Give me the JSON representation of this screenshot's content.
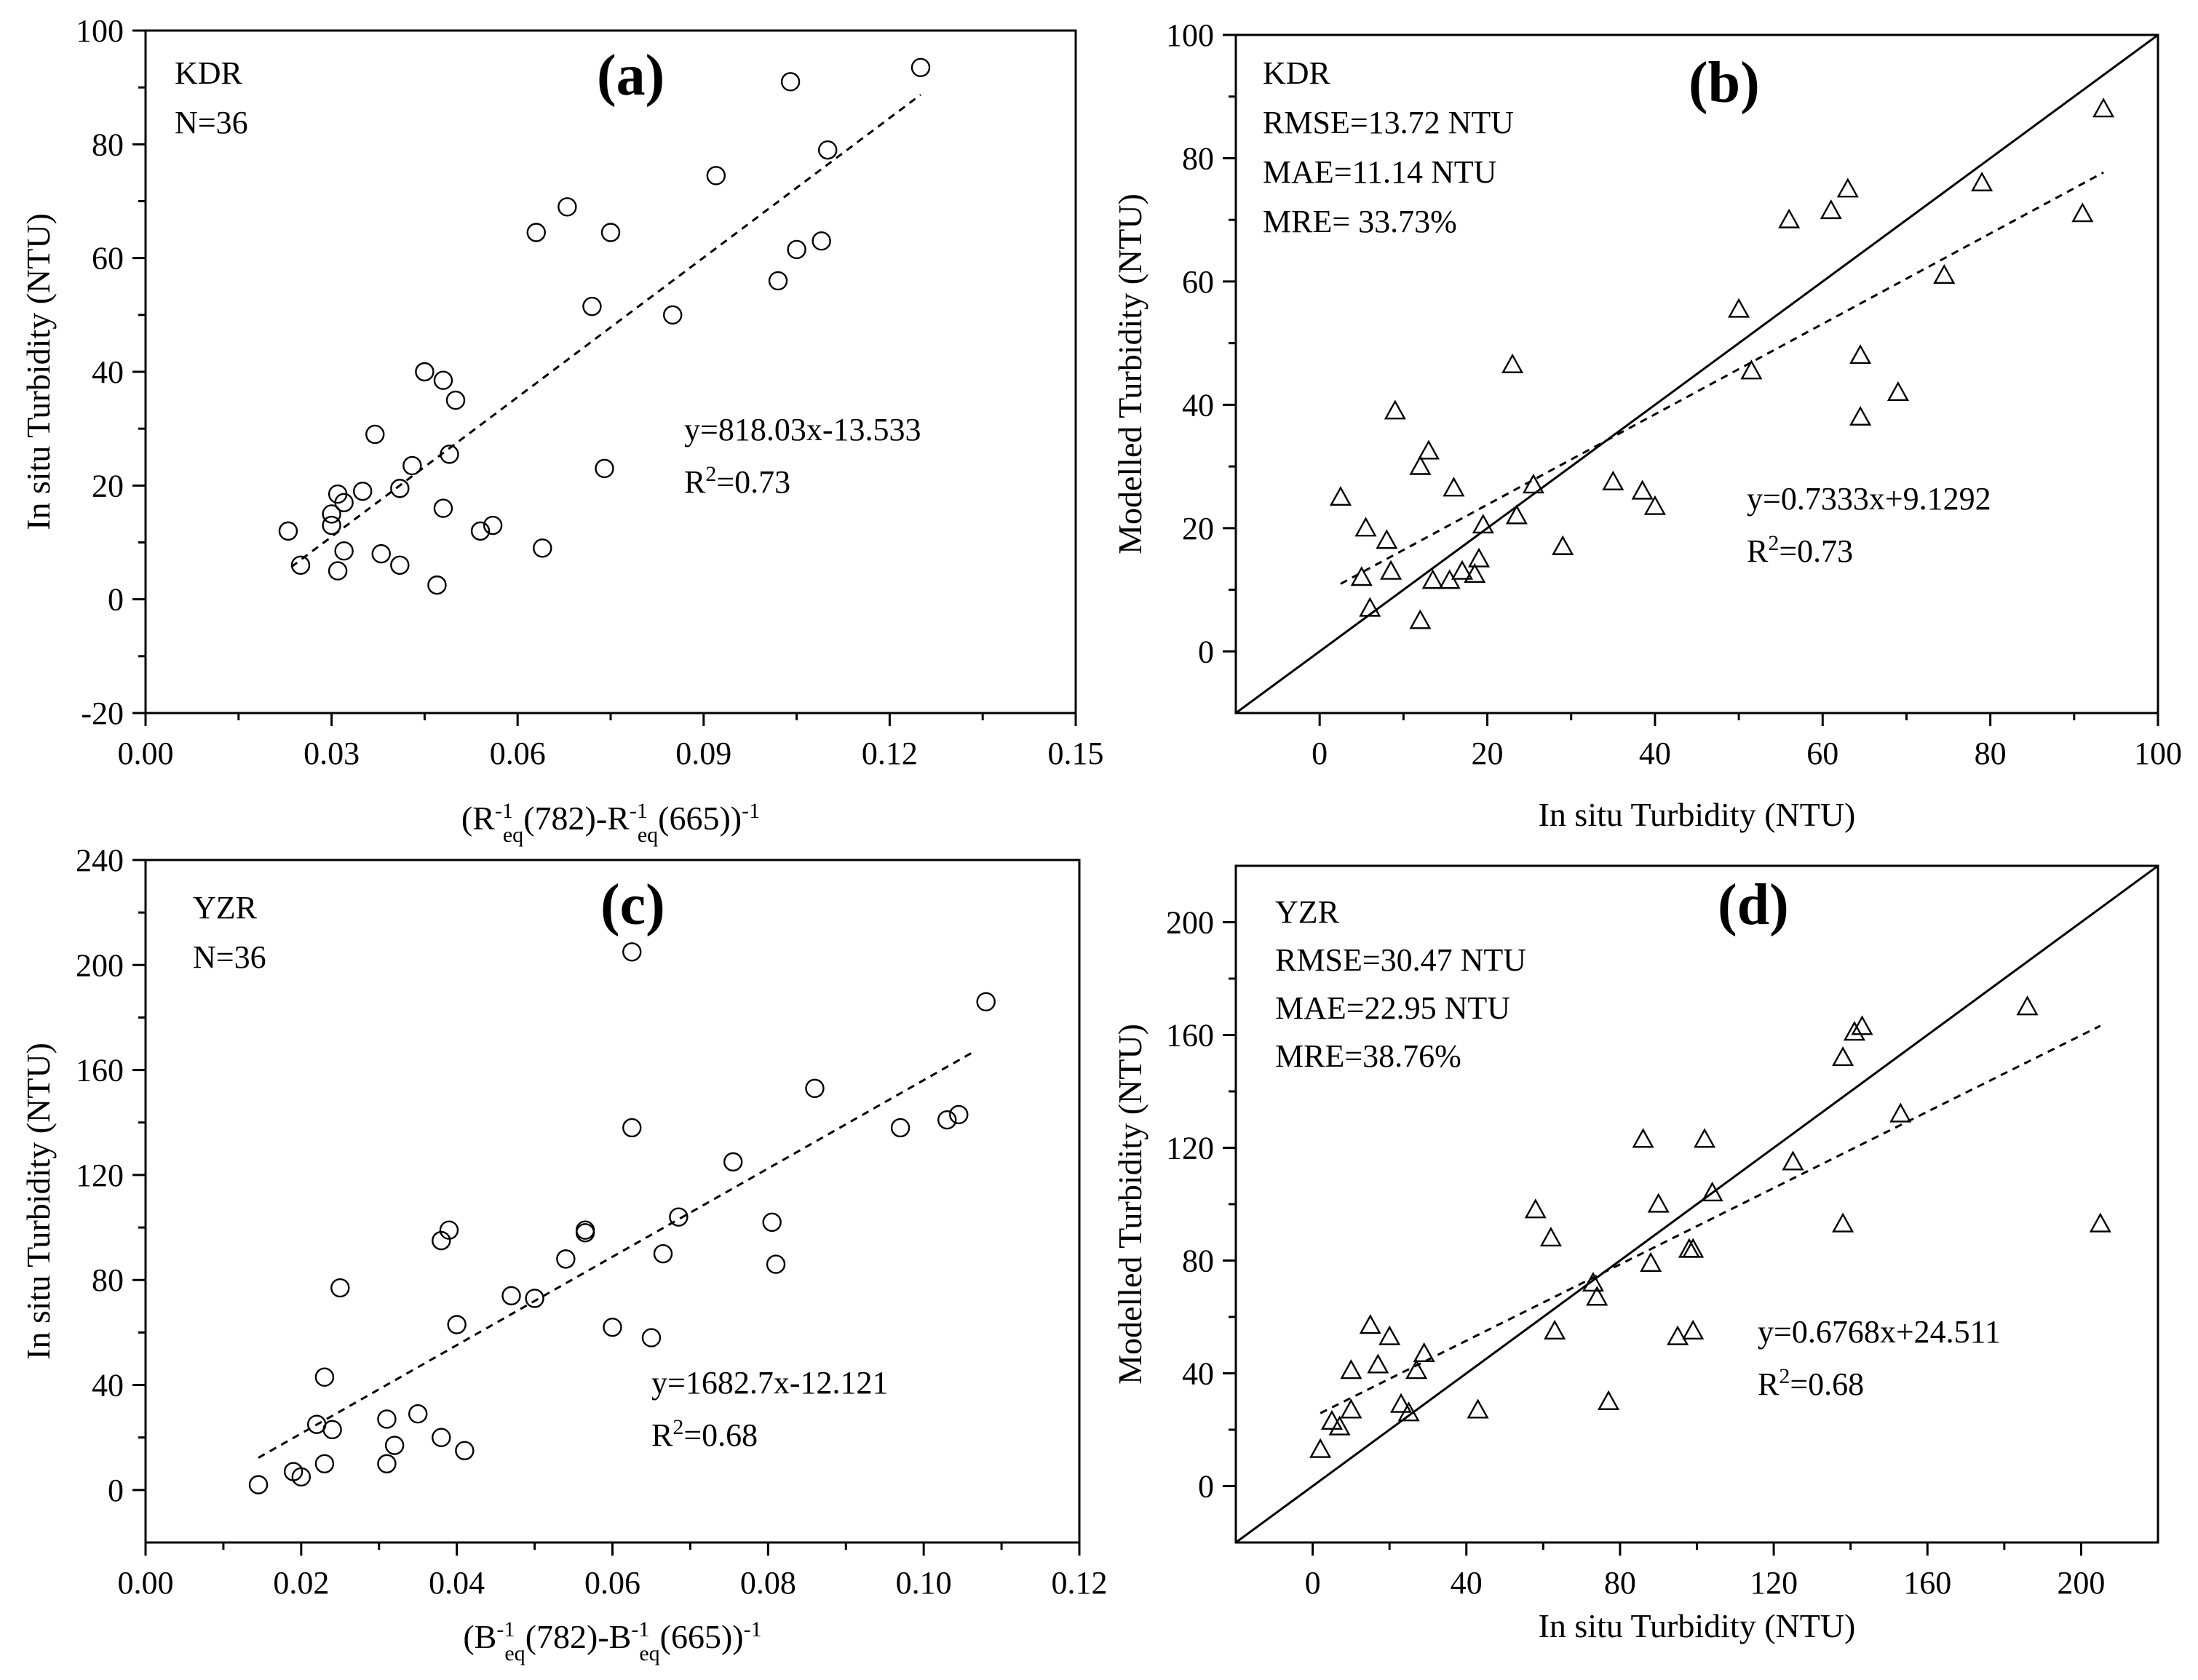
{
  "chart_data": [
    {
      "id": "a",
      "type": "scatter",
      "panel_label": "(a)",
      "xlabel_html": "(R<tspan baseline-shift='super' font-size='30'>-1</tspan><tspan baseline-shift='sub' font-size='30' dx='-14'>eq</tspan>(782)-R<tspan baseline-shift='super' font-size='30'>-1</tspan><tspan baseline-shift='sub' font-size='30' dx='-14'>eq</tspan>(665))<tspan baseline-shift='super' font-size='30'>-1</tspan>",
      "xlabel": "(R-1eq(782)-R-1eq(665))-1",
      "ylabel": "In situ Turbidity (NTU)",
      "xlim": [
        0,
        0.15
      ],
      "ylim": [
        -20,
        100
      ],
      "xticks": [
        0,
        0.03,
        0.06,
        0.09,
        0.12,
        0.15
      ],
      "xtick_labels": [
        "0.00",
        "0.03",
        "0.06",
        "0.09",
        "0.12",
        "0.15"
      ],
      "yticks": [
        -20,
        0,
        20,
        40,
        60,
        80,
        100
      ],
      "ytick_labels": [
        "-20",
        "0",
        "20",
        "40",
        "60",
        "80",
        "100"
      ],
      "annotations": [
        "KDR",
        "N=36"
      ],
      "equation": "y=818.03x-13.533",
      "r2_label": "R",
      "r2_sup": "2",
      "r2_value": "=0.73",
      "marker": "circle",
      "fit_line": {
        "x0": 0.0235,
        "x1": 0.125,
        "slope": 818.03,
        "intercept": -13.533
      },
      "one_to_one": false,
      "points": [
        [
          0.023,
          12
        ],
        [
          0.025,
          6
        ],
        [
          0.03,
          15
        ],
        [
          0.03,
          13
        ],
        [
          0.031,
          18.5
        ],
        [
          0.031,
          5
        ],
        [
          0.032,
          8.5
        ],
        [
          0.032,
          17
        ],
        [
          0.035,
          19
        ],
        [
          0.037,
          29
        ],
        [
          0.038,
          8
        ],
        [
          0.041,
          6
        ],
        [
          0.041,
          19.5
        ],
        [
          0.043,
          23.5
        ],
        [
          0.045,
          40
        ],
        [
          0.047,
          2.5
        ],
        [
          0.048,
          38.5
        ],
        [
          0.048,
          16
        ],
        [
          0.049,
          25.5
        ],
        [
          0.05,
          35
        ],
        [
          0.054,
          12
        ],
        [
          0.056,
          13
        ],
        [
          0.063,
          64.5
        ],
        [
          0.064,
          9
        ],
        [
          0.068,
          69
        ],
        [
          0.072,
          51.5
        ],
        [
          0.074,
          23
        ],
        [
          0.075,
          64.5
        ],
        [
          0.085,
          50
        ],
        [
          0.092,
          74.5
        ],
        [
          0.102,
          56
        ],
        [
          0.104,
          91
        ],
        [
          0.105,
          61.5
        ],
        [
          0.109,
          63
        ],
        [
          0.11,
          79
        ],
        [
          0.125,
          93.5
        ]
      ]
    },
    {
      "id": "b",
      "type": "scatter",
      "panel_label": "(b)",
      "xlabel": "In situ Turbidity (NTU)",
      "ylabel": "Modelled Turbidity (NTU)",
      "xlim": [
        -10,
        100
      ],
      "ylim": [
        -10,
        100
      ],
      "xticks": [
        0,
        20,
        40,
        60,
        80,
        100
      ],
      "xtick_labels": [
        "0",
        "20",
        "40",
        "60",
        "80",
        "100"
      ],
      "yticks": [
        0,
        20,
        40,
        60,
        80,
        100
      ],
      "ytick_labels": [
        "0",
        "20",
        "40",
        "60",
        "80",
        "100"
      ],
      "annotations": [
        "KDR",
        "RMSE=13.72 NTU",
        "MAE=11.14 NTU",
        "MRE= 33.73%"
      ],
      "equation": "y=0.7333x+9.1292",
      "r2_label": "R",
      "r2_sup": "2",
      "r2_value": "=0.73",
      "marker": "triangle",
      "fit_line": {
        "x0": 2.5,
        "x1": 93.5,
        "slope": 0.7333,
        "intercept": 9.1292
      },
      "one_to_one": true,
      "points": [
        [
          2.5,
          25
        ],
        [
          5,
          12
        ],
        [
          5.5,
          20
        ],
        [
          6,
          7
        ],
        [
          8,
          18
        ],
        [
          8.5,
          13
        ],
        [
          9,
          39
        ],
        [
          12,
          30
        ],
        [
          12,
          5
        ],
        [
          13,
          32.5
        ],
        [
          13.5,
          11.5
        ],
        [
          15.5,
          11.5
        ],
        [
          16,
          26.5
        ],
        [
          17,
          13
        ],
        [
          18.5,
          12.5
        ],
        [
          19,
          15
        ],
        [
          19.5,
          20.5
        ],
        [
          23,
          46.5
        ],
        [
          23.5,
          22
        ],
        [
          25.5,
          27
        ],
        [
          29,
          17
        ],
        [
          35,
          27.5
        ],
        [
          38.5,
          26
        ],
        [
          40,
          23.5
        ],
        [
          50,
          55.5
        ],
        [
          51.5,
          45.5
        ],
        [
          56,
          70
        ],
        [
          61,
          71.5
        ],
        [
          63,
          75
        ],
        [
          64.5,
          48
        ],
        [
          64.5,
          38
        ],
        [
          69,
          42
        ],
        [
          74.5,
          61
        ],
        [
          79,
          76
        ],
        [
          91,
          71
        ],
        [
          93.5,
          88
        ]
      ]
    },
    {
      "id": "c",
      "type": "scatter",
      "panel_label": "(c)",
      "xlabel_html": "(B<tspan baseline-shift='super' font-size='30'>-1</tspan><tspan baseline-shift='sub' font-size='30' dx='-14'>eq</tspan>(782)-B<tspan baseline-shift='super' font-size='30'>-1</tspan><tspan baseline-shift='sub' font-size='30' dx='-14'>eq</tspan>(665))<tspan baseline-shift='super' font-size='30'>-1</tspan>",
      "xlabel": "(B-1eq(782)-B-1eq(665))-1",
      "ylabel": "In situ Turbidity (NTU)",
      "xlim": [
        0,
        0.12
      ],
      "ylim": [
        -20,
        240
      ],
      "xticks": [
        0,
        0.02,
        0.04,
        0.06,
        0.08,
        0.1,
        0.12
      ],
      "xtick_labels": [
        "0.00",
        "0.02",
        "0.04",
        "0.06",
        "0.08",
        "0.10",
        "0.12"
      ],
      "yticks": [
        0,
        40,
        80,
        120,
        160,
        200,
        240
      ],
      "ytick_labels": [
        "0",
        "40",
        "80",
        "120",
        "160",
        "200",
        "240"
      ],
      "annotations": [
        "YZR",
        "N=36"
      ],
      "equation": "y=1682.7x-12.121",
      "r2_label": "R",
      "r2_sup": "2",
      "r2_value": "=0.68",
      "marker": "circle",
      "fit_line": {
        "x0": 0.0145,
        "x1": 0.1065,
        "slope": 1682.7,
        "intercept": -12.121
      },
      "one_to_one": false,
      "points": [
        [
          0.0145,
          2
        ],
        [
          0.019,
          7
        ],
        [
          0.02,
          5
        ],
        [
          0.022,
          25
        ],
        [
          0.023,
          43
        ],
        [
          0.023,
          10
        ],
        [
          0.024,
          23
        ],
        [
          0.025,
          77
        ],
        [
          0.031,
          10
        ],
        [
          0.031,
          27
        ],
        [
          0.032,
          17
        ],
        [
          0.035,
          29
        ],
        [
          0.038,
          95
        ],
        [
          0.038,
          20
        ],
        [
          0.039,
          99
        ],
        [
          0.04,
          63
        ],
        [
          0.041,
          15
        ],
        [
          0.047,
          74
        ],
        [
          0.05,
          73
        ],
        [
          0.054,
          88
        ],
        [
          0.0565,
          98
        ],
        [
          0.0565,
          99
        ],
        [
          0.06,
          62
        ],
        [
          0.0625,
          138
        ],
        [
          0.0625,
          205
        ],
        [
          0.065,
          58
        ],
        [
          0.0665,
          90
        ],
        [
          0.0685,
          104
        ],
        [
          0.0755,
          125
        ],
        [
          0.0805,
          102
        ],
        [
          0.081,
          86
        ],
        [
          0.086,
          153
        ],
        [
          0.097,
          138
        ],
        [
          0.103,
          141
        ],
        [
          0.1045,
          143
        ],
        [
          0.108,
          186
        ]
      ]
    },
    {
      "id": "d",
      "type": "scatter",
      "panel_label": "(d)",
      "xlabel": "In situ Turbidity (NTU)",
      "ylabel": "Modelled Turbidity (NTU)",
      "xlim": [
        -20,
        220
      ],
      "ylim": [
        -20,
        220
      ],
      "xticks": [
        0,
        40,
        80,
        120,
        160,
        200
      ],
      "xtick_labels": [
        "0",
        "40",
        "80",
        "120",
        "160",
        "200"
      ],
      "yticks": [
        0,
        40,
        80,
        120,
        160,
        200
      ],
      "ytick_labels": [
        "0",
        "40",
        "80",
        "120",
        "160",
        "200"
      ],
      "annotations": [
        "YZR",
        "RMSE=30.47 NTU",
        "MAE=22.95 NTU",
        "MRE=38.76%"
      ],
      "equation": "y=0.6768x+24.511",
      "r2_label": "R",
      "r2_sup": "2",
      "r2_value": "=0.68",
      "marker": "triangle",
      "fit_line": {
        "x0": 2,
        "x1": 205,
        "slope": 0.6768,
        "intercept": 24.511
      },
      "one_to_one": true,
      "points": [
        [
          2,
          13
        ],
        [
          5,
          23
        ],
        [
          7,
          21
        ],
        [
          10,
          41
        ],
        [
          10,
          27
        ],
        [
          15,
          57
        ],
        [
          17,
          43
        ],
        [
          20,
          53
        ],
        [
          23,
          29
        ],
        [
          25,
          26
        ],
        [
          27,
          41
        ],
        [
          29,
          47
        ],
        [
          43,
          27
        ],
        [
          58,
          98
        ],
        [
          62,
          88
        ],
        [
          63,
          55
        ],
        [
          73,
          72
        ],
        [
          74,
          67
        ],
        [
          77,
          30
        ],
        [
          86,
          123
        ],
        [
          88,
          79
        ],
        [
          90,
          100
        ],
        [
          95,
          53
        ],
        [
          98,
          84
        ],
        [
          99,
          55
        ],
        [
          99,
          84
        ],
        [
          102,
          123
        ],
        [
          104,
          104
        ],
        [
          125,
          115
        ],
        [
          138,
          152
        ],
        [
          138,
          93
        ],
        [
          141,
          161
        ],
        [
          143,
          163
        ],
        [
          153,
          132
        ],
        [
          186,
          170
        ],
        [
          205,
          93
        ]
      ]
    }
  ]
}
